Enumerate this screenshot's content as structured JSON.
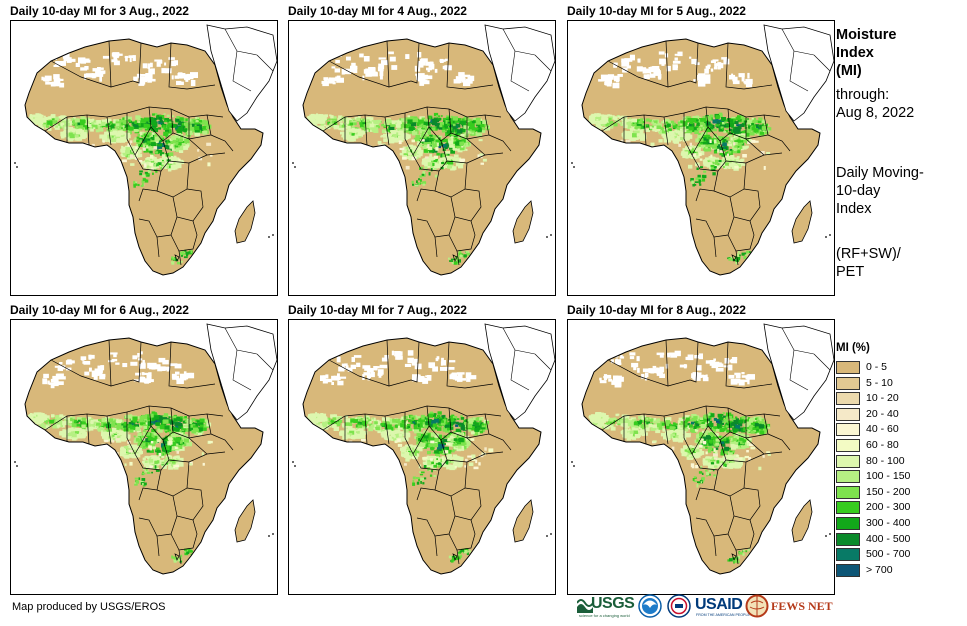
{
  "panels": [
    {
      "title": "Daily 10-day MI for 3 Aug., 2022"
    },
    {
      "title": "Daily 10-day MI for 4 Aug., 2022"
    },
    {
      "title": "Daily 10-day MI for 5 Aug., 2022"
    },
    {
      "title": "Daily 10-day MI for 6 Aug., 2022"
    },
    {
      "title": "Daily 10-day MI for 7 Aug., 2022"
    },
    {
      "title": "Daily 10-day MI for 8 Aug., 2022"
    }
  ],
  "sidebar": {
    "title_lines": [
      "Moisture",
      "Index",
      "(MI)"
    ],
    "through_label": "through:",
    "through_date": "Aug 8, 2022",
    "description_lines": [
      "Daily Moving-",
      "10-day",
      "Index"
    ],
    "formula_lines": [
      "(RF+SW)/",
      "PET"
    ]
  },
  "legend": {
    "title": "MI (%)",
    "items": [
      {
        "label": "0 - 5",
        "color": "#d8b87a"
      },
      {
        "label": "5 - 10",
        "color": "#e2c992"
      },
      {
        "label": "10 - 20",
        "color": "#ecdaad"
      },
      {
        "label": "20 - 40",
        "color": "#f5e9c8"
      },
      {
        "label": "40 - 60",
        "color": "#fbf7d4"
      },
      {
        "label": "60 - 80",
        "color": "#f3fbc4"
      },
      {
        "label": "80 - 100",
        "color": "#ddf7ae"
      },
      {
        "label": "100 - 150",
        "color": "#b6f083"
      },
      {
        "label": "150 - 200",
        "color": "#7ee34e"
      },
      {
        "label": "200 - 300",
        "color": "#37cc1f"
      },
      {
        "label": "300 - 400",
        "color": "#12a81a"
      },
      {
        "label": "400 - 500",
        "color": "#0a8a2a"
      },
      {
        "label": "500 - 700",
        "color": "#087a66"
      },
      {
        "label": "> 700",
        "color": "#0d5676"
      }
    ]
  },
  "footer": {
    "credit": "Map produced by USGS/EROS",
    "logos": {
      "usgs": "USGS",
      "usgs_tagline": "science for a changing world",
      "usaid": "USAID",
      "usaid_tagline": "FROM THE AMERICAN PEOPLE",
      "fews": "FEWS NET"
    }
  },
  "colors": {
    "dry": "#d8b87a",
    "no_data": "#ffffff",
    "border": "#000000"
  }
}
